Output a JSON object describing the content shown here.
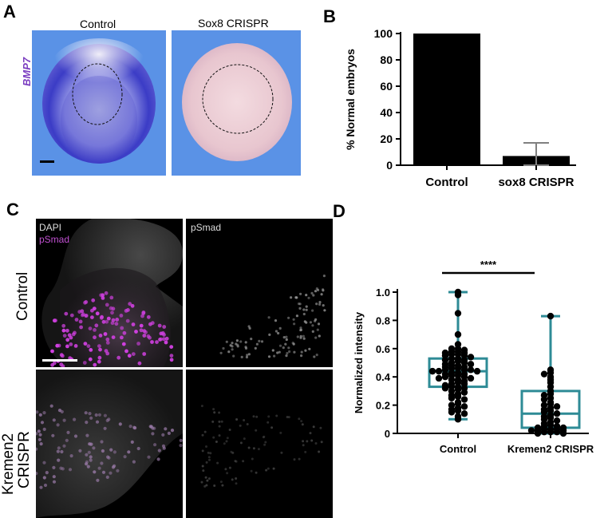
{
  "panels": {
    "a": {
      "letter": "A",
      "left_label": "Control",
      "right_label": "Sox8 CRISPR",
      "gene_label": "BMP7",
      "colors": {
        "background": "#5a92e6",
        "stain": "#3a3cc8",
        "gene_label": "#7a3cc0"
      }
    },
    "b": {
      "letter": "B"
    },
    "c": {
      "letter": "C",
      "col1_label_a": "DAPI",
      "col1_label_b": "pSmad",
      "col2_label": "pSmad",
      "row1_label": "Control",
      "row2_label_a": "Kremen2",
      "row2_label_b": "CRISPR",
      "colors": {
        "magenta": "#d040e0",
        "label_magenta": "#c050d0"
      }
    },
    "d": {
      "letter": "D"
    }
  },
  "chart_data": [
    {
      "id": "B",
      "type": "bar",
      "categories": [
        "Control",
        "sox8 CRISPR"
      ],
      "values": [
        100,
        7
      ],
      "error": [
        0,
        10
      ],
      "ylabel": "% Normal embryos",
      "ylim": [
        0,
        100
      ],
      "yticks": [
        "0",
        "20",
        "40",
        "60",
        "80",
        "100"
      ],
      "colors": {
        "bar": "#000000",
        "error": "#808080"
      }
    },
    {
      "id": "D",
      "type": "box",
      "categories": [
        "Control",
        "Kremen2 CRISPR"
      ],
      "ylabel": "Normalized intensity",
      "ylim": [
        0,
        1.0
      ],
      "yticks": [
        "0",
        "0.2",
        "0.4",
        "0.6",
        "0.8",
        "1.0"
      ],
      "significance": "****",
      "colors": {
        "box": "#2e8b96",
        "point": "#000000"
      },
      "series": [
        {
          "q1": 0.33,
          "median": 0.44,
          "q3": 0.53,
          "whisker_low": 0.1,
          "whisker_high": 1.0,
          "points": [
            1.0,
            0.98,
            0.85,
            0.7,
            0.63,
            0.6,
            0.6,
            0.59,
            0.58,
            0.58,
            0.57,
            0.57,
            0.56,
            0.56,
            0.55,
            0.55,
            0.54,
            0.53,
            0.53,
            0.52,
            0.52,
            0.51,
            0.5,
            0.5,
            0.49,
            0.49,
            0.48,
            0.48,
            0.47,
            0.47,
            0.46,
            0.46,
            0.45,
            0.45,
            0.45,
            0.44,
            0.44,
            0.44,
            0.43,
            0.43,
            0.42,
            0.42,
            0.41,
            0.41,
            0.4,
            0.4,
            0.39,
            0.39,
            0.38,
            0.38,
            0.37,
            0.36,
            0.35,
            0.35,
            0.34,
            0.33,
            0.33,
            0.32,
            0.32,
            0.31,
            0.3,
            0.29,
            0.28,
            0.27,
            0.26,
            0.25,
            0.24,
            0.22,
            0.21,
            0.2,
            0.19,
            0.18,
            0.17,
            0.16,
            0.15,
            0.14,
            0.12,
            0.1
          ]
        },
        {
          "q1": 0.04,
          "median": 0.14,
          "q3": 0.3,
          "whisker_low": 0.0,
          "whisker_high": 0.83,
          "points": [
            0.83,
            0.45,
            0.43,
            0.42,
            0.4,
            0.38,
            0.36,
            0.33,
            0.3,
            0.28,
            0.27,
            0.25,
            0.24,
            0.22,
            0.21,
            0.2,
            0.19,
            0.18,
            0.17,
            0.16,
            0.15,
            0.14,
            0.13,
            0.12,
            0.11,
            0.1,
            0.09,
            0.08,
            0.07,
            0.06,
            0.05,
            0.05,
            0.04,
            0.04,
            0.03,
            0.03,
            0.03,
            0.02,
            0.02,
            0.02,
            0.01,
            0.01,
            0.01,
            0.0,
            0.0
          ]
        }
      ]
    }
  ]
}
